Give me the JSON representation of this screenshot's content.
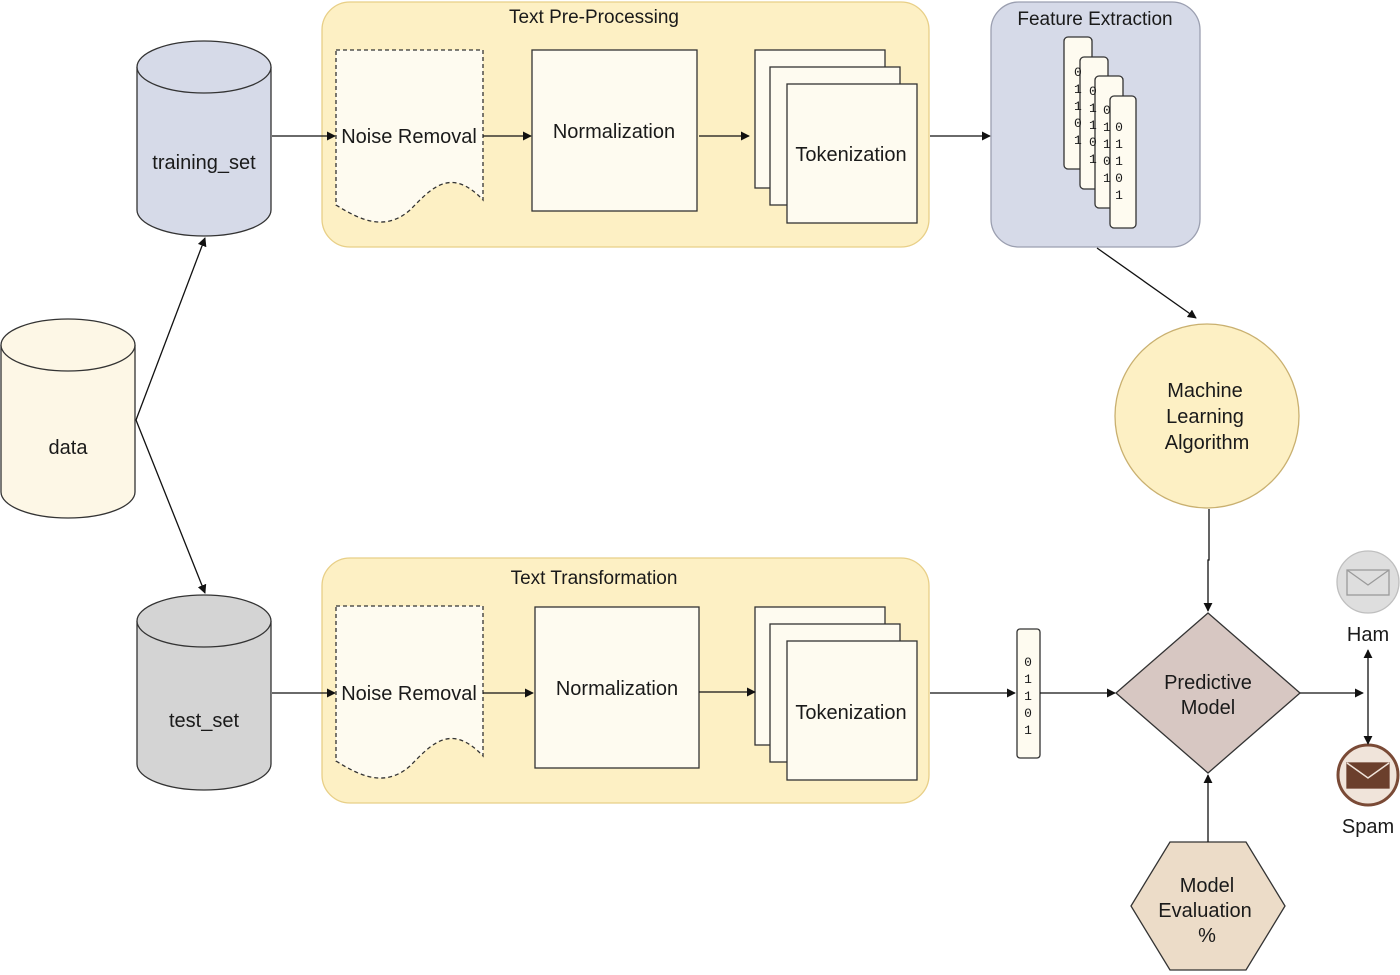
{
  "colors": {
    "cylinder_blue": "#d6dae8",
    "cylinder_gray": "#d4d4d4",
    "cylinder_cream": "#fdf7e6",
    "group_fill": "#fdf0c4",
    "group_stroke": "#e8cf87",
    "feature_fill": "#d6dae8",
    "feature_stroke": "#9b9fb0",
    "box_fill": "#fefbf0",
    "algo_fill": "#fdf0c4",
    "algo_stroke": "#c9b070",
    "diamond_fill": "#d7c7c2",
    "hex_fill": "#ecdcc8",
    "ham_fill": "#dedede",
    "spam_stroke": "#7a4a36",
    "spam_fill": "#f0e4da",
    "line": "#111111"
  },
  "nodes": {
    "data": "data",
    "training_set": "training_set",
    "test_set": "test_set",
    "text_preprocessing": "Text Pre-Processing",
    "text_transformation": "Text Transformation",
    "feature_extraction": "Feature Extraction",
    "noise_removal": "Noise Removal",
    "normalization": "Normalization",
    "tokenization": "Tokenization",
    "ml_algorithm": [
      "Machine",
      "Learning",
      "Algorithm"
    ],
    "predictive_model": [
      "Predictive",
      "Model"
    ],
    "model_evaluation": [
      "Model",
      "Evaluation",
      "%"
    ],
    "ham": "Ham",
    "spam": "Spam"
  },
  "vector_bits": [
    "0",
    "1",
    "1",
    "0",
    "1"
  ]
}
